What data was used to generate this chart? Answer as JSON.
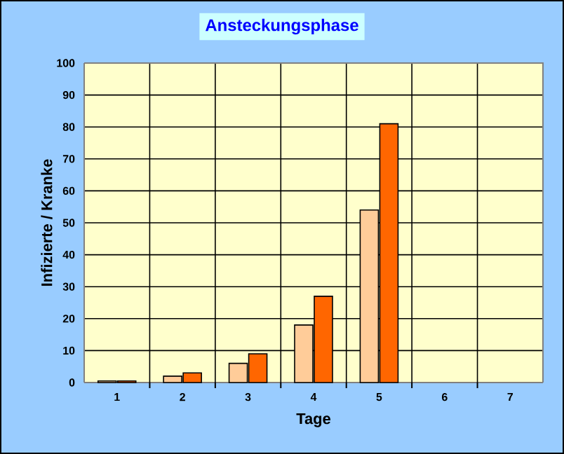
{
  "chart_data": {
    "type": "bar",
    "title": "Ansteckungsphase",
    "xlabel": "Tage",
    "ylabel": "Infizierte / Kranke",
    "categories": [
      "1",
      "2",
      "3",
      "4",
      "5",
      "6",
      "7"
    ],
    "series": [
      {
        "color": "#ffcc99",
        "values": [
          0.5,
          2,
          6,
          18,
          54,
          null,
          null
        ]
      },
      {
        "color": "#ff6600",
        "values": [
          0.5,
          3,
          9,
          27,
          81,
          null,
          null
        ]
      }
    ],
    "ylim": [
      0,
      100
    ],
    "yticks": [
      0,
      10,
      20,
      30,
      40,
      50,
      60,
      70,
      80,
      90,
      100
    ],
    "grid": true
  }
}
